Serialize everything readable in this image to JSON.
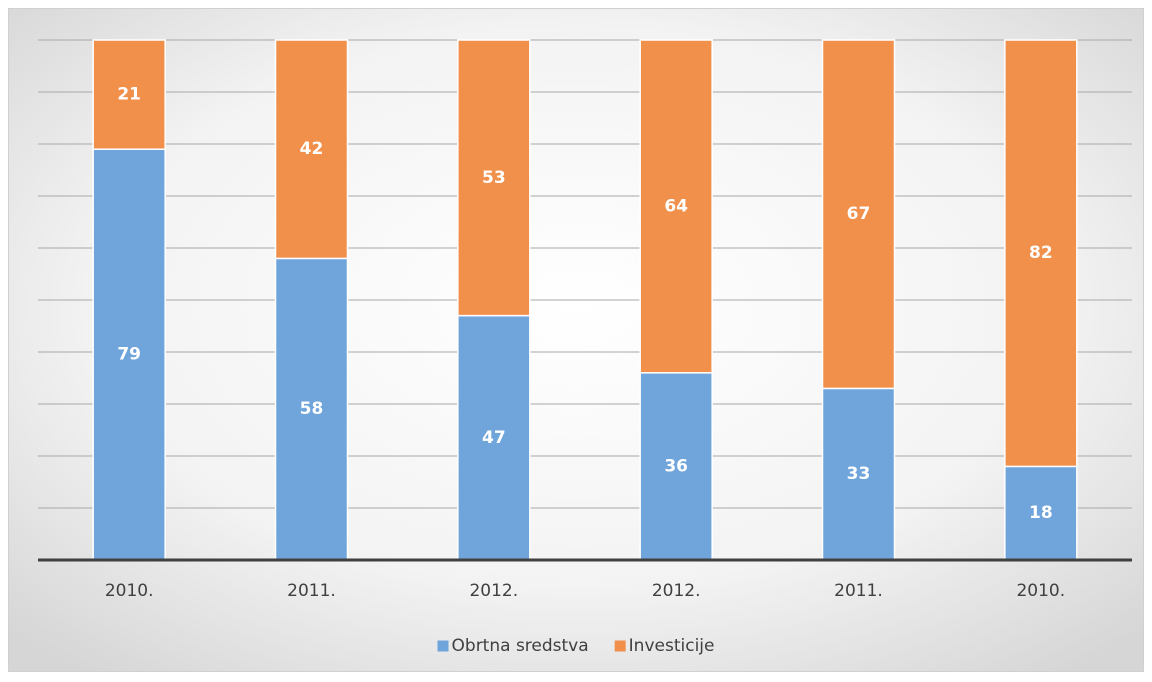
{
  "chart_data": {
    "type": "stacked_bar",
    "categories": [
      "2010.",
      "2011.",
      "2012.",
      "2012.",
      "2011.",
      "2010."
    ],
    "series": [
      {
        "name": "Obrtna sredstva",
        "color": "#6fa5db",
        "values": [
          79,
          58,
          47,
          36,
          33,
          18
        ]
      },
      {
        "name": "Investicije",
        "color": "#f0904b",
        "values": [
          21,
          42,
          53,
          64,
          67,
          82
        ]
      }
    ],
    "ylim": [
      0,
      100
    ],
    "yticks": [
      0,
      10,
      20,
      30,
      40,
      50,
      60,
      70,
      80,
      90,
      100
    ],
    "grid": true,
    "legend": "bottom"
  }
}
